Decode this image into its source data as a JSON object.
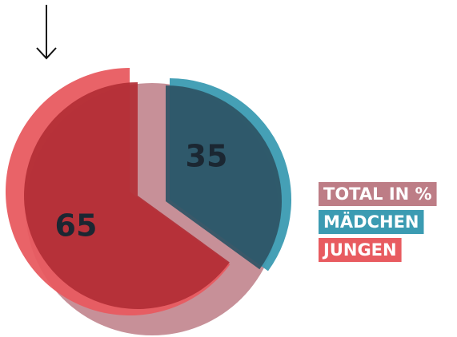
{
  "chart_data": {
    "type": "pie",
    "legend_title": "TOTAL IN %",
    "total_color": "#bd7d86",
    "categories": [
      "MÄDCHEN",
      "JUNGEN"
    ],
    "values": [
      35,
      65
    ],
    "colors": [
      "#3b9bb2",
      "#e85b60"
    ],
    "dark_colors": [
      "#2e5465",
      "#b22e35"
    ],
    "legend": "right"
  }
}
